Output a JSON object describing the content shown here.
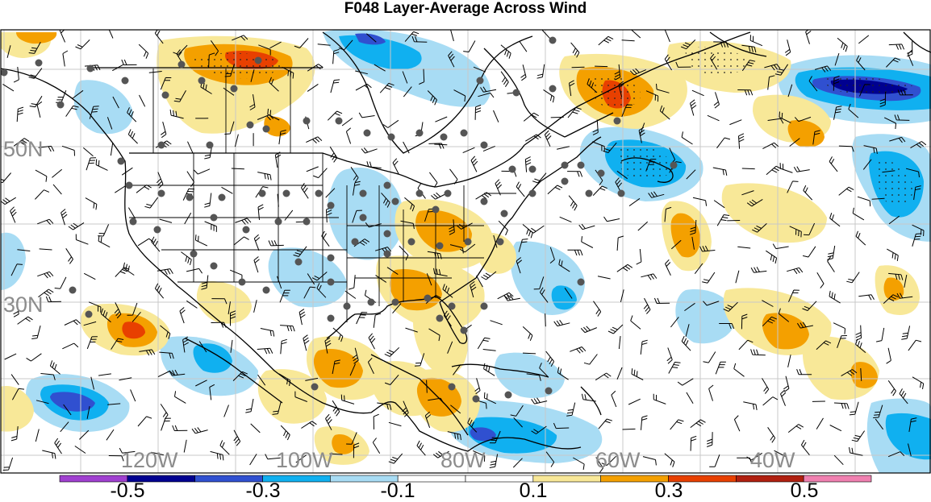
{
  "title": "F048 Layer-Average Across Wind",
  "map": {
    "lat_labels": [
      "50N",
      "30N"
    ],
    "lon_labels": [
      "120W",
      "100W",
      "80W",
      "60W",
      "40W"
    ],
    "land_color": "#ffffff",
    "grid_color": "#c8c8c8",
    "station_color": "#555555"
  },
  "colorbar": {
    "colors": [
      "#a040d0",
      "#000090",
      "#3050d0",
      "#10b0f0",
      "#a8dcf4",
      "#ffffff",
      "#ffffff",
      "#f8e898",
      "#f4a000",
      "#e84000",
      "#b02010",
      "#f080b0"
    ],
    "tick_labels": [
      "-0.5",
      "-0.3",
      "-0.1",
      "0.1",
      "0.3",
      "0.5"
    ]
  }
}
